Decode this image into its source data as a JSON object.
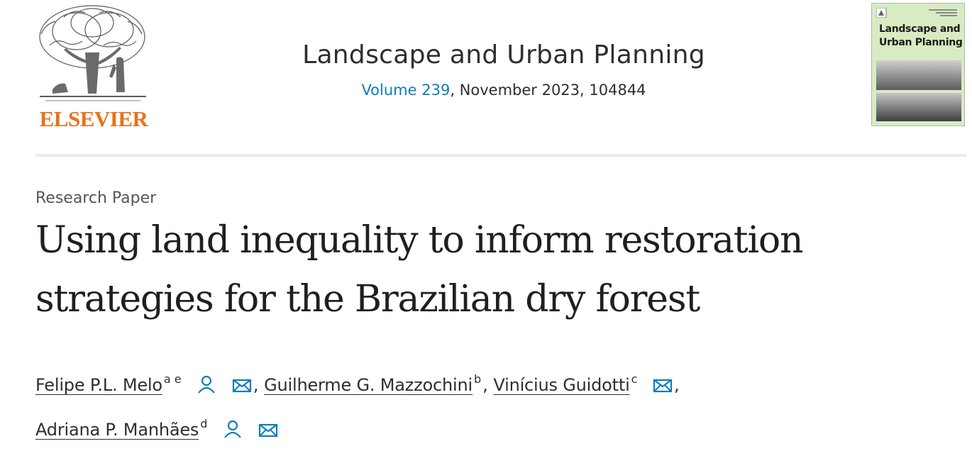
{
  "header": {
    "publisher_logo": {
      "icon": "elsevier-tree-logo",
      "wordmark": "ELSEVIER",
      "wordmark_color": "#e9711c"
    },
    "journal_title": "Landscape and Urban Planning",
    "volume_link": "Volume 239",
    "issue_info": ", November 2023, 104844",
    "link_color": "#0c7dbb",
    "cover_thumbnail": {
      "icon": "journal-cover-image",
      "title": "Landscape and Urban Planning",
      "background_color": "#d8ebc2"
    }
  },
  "article": {
    "type_label": "Research Paper",
    "title": "Using land inequality to inform restoration strategies for the Brazilian dry forest",
    "authors": [
      {
        "name": "Felipe P.L. Melo",
        "affiliations": "a e",
        "icons": [
          "person-icon",
          "mail-icon"
        ]
      },
      {
        "name": "Guilherme G. Mazzochini",
        "affiliations": "b",
        "icons": []
      },
      {
        "name": "Vinícius Guidotti",
        "affiliations": "c",
        "icons": [
          "mail-icon"
        ]
      },
      {
        "name": "Adriana P. Manhães",
        "affiliations": "d",
        "icons": [
          "person-icon",
          "mail-icon"
        ]
      }
    ],
    "separator": ","
  },
  "colors": {
    "text": "#1f1f1f",
    "muted_text": "#555555",
    "icon_blue": "#0c7dbb",
    "divider": "#ebebeb"
  }
}
